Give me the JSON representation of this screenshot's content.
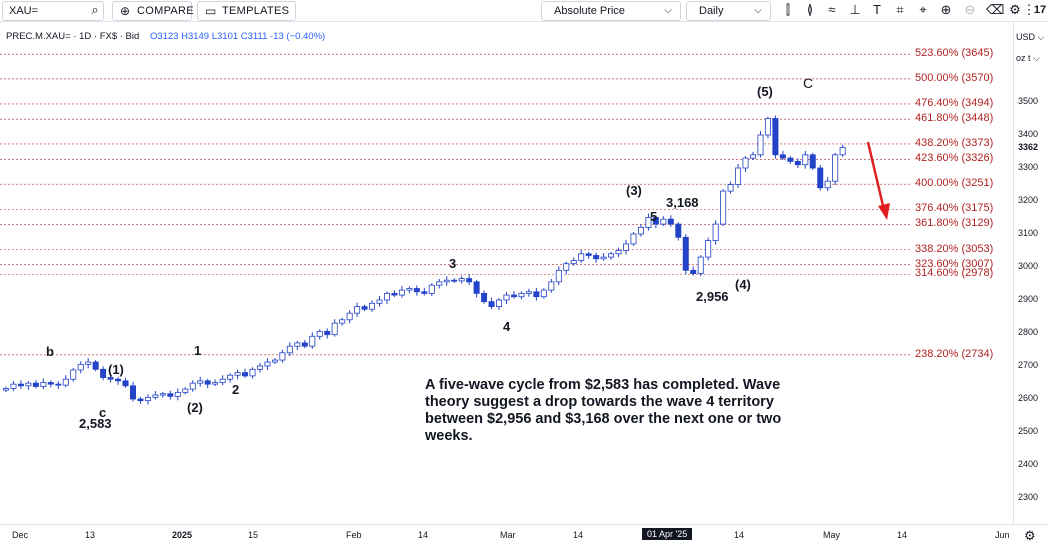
{
  "toolbar": {
    "symbol_value": "XAU=",
    "compare_label": "COMPARE",
    "templates_label": "TEMPLATES",
    "price_mode": "Absolute Price",
    "interval": "Daily",
    "search_icon": "search-icon",
    "tools": [
      "candles-icon",
      "bars-icon",
      "trend-icon",
      "fib-icon",
      "text-icon",
      "shapes-icon",
      "brush-icon",
      "zoom-in-icon",
      "zoom-out-icon",
      "delete-icon",
      "settings-icon",
      "fullscreen-icon",
      "logo-icon"
    ]
  },
  "legend": {
    "symbol": "PREC.M.XAU= · 1D · FX$ · Bid",
    "ohlc": "O3123 H3149 L3101 C3111 -13 (−0.40%)"
  },
  "axis": {
    "currency": "USD",
    "unit": "oz t",
    "current_price": "3362",
    "price_ticks": [
      "3500",
      "3400",
      "3300",
      "3200",
      "3100",
      "3000",
      "2900",
      "2800",
      "2700",
      "2600",
      "2500",
      "2400",
      "2300"
    ],
    "time_ticks": [
      "Dec",
      "13",
      "2025",
      "15",
      "Feb",
      "14",
      "Mar",
      "14",
      "01 Apr '25",
      "14",
      "May",
      "14",
      "Jun"
    ],
    "highlighted_time": "01 Apr '25"
  },
  "fib_levels": [
    {
      "label": "523.60% (3645)",
      "value": 3645
    },
    {
      "label": "500.00% (3570)",
      "value": 3570
    },
    {
      "label": "476.40% (3494)",
      "value": 3494
    },
    {
      "label": "461.80% (3448)",
      "value": 3448
    },
    {
      "label": "438.20% (3373)",
      "value": 3373
    },
    {
      "label": "423.60% (3326)",
      "value": 3326
    },
    {
      "label": "400.00% (3251)",
      "value": 3251
    },
    {
      "label": "376.40% (3175)",
      "value": 3175
    },
    {
      "label": "361.80% (3129)",
      "value": 3129
    },
    {
      "label": "338.20% (3053)",
      "value": 3053
    },
    {
      "label": "323.60% (3007)",
      "value": 3007
    },
    {
      "label": "314.60% (2978)",
      "value": 2978
    },
    {
      "label": "238.20% (2734)",
      "value": 2734
    }
  ],
  "waves": {
    "b": "b",
    "c_lower": "c",
    "w1_paren": "(1)",
    "low_2583": "2,583",
    "w1": "1",
    "w2_paren": "(2)",
    "w2": "2",
    "w3": "3",
    "w4": "4",
    "w3_paren": "(3)",
    "w5": "5",
    "high_3168": "3,168",
    "low_2956": "2,956",
    "w4_paren": "(4)",
    "w5_paren": "(5)",
    "C": "C"
  },
  "annotation": "A five-wave cycle from $2,583 has completed. Wave theory suggest a drop towards the wave 4 territory between $2,956 and $3,168 over the next one or two weeks.",
  "colors": {
    "up": "#2962ff",
    "down": "#2343c8",
    "fib": "#b22222",
    "arrow": "#e02020"
  },
  "chart_data": {
    "type": "candlestick",
    "title": "",
    "series": [
      {
        "name": "",
        "ohlc_close": [
          2632,
          2645,
          2640,
          2648,
          2638,
          2650,
          2645,
          2642,
          2660,
          2688,
          2705,
          2712,
          2690,
          2665,
          2660,
          2655,
          2640,
          2600,
          2595,
          2605,
          2612,
          2616,
          2608,
          2620,
          2630,
          2648,
          2655,
          2645,
          2650,
          2660,
          2672,
          2680,
          2670,
          2690,
          2700,
          2712,
          2718,
          2740,
          2760,
          2770,
          2760,
          2790,
          2805,
          2795,
          2830,
          2840,
          2860,
          2880,
          2872,
          2890,
          2900,
          2920,
          2915,
          2930,
          2935,
          2925,
          2920,
          2945,
          2955,
          2960,
          2958,
          2965,
          2955,
          2920,
          2895,
          2880,
          2900,
          2915,
          2910,
          2920,
          2925,
          2910,
          2930,
          2955,
          2990,
          3010,
          3020,
          3040,
          3035,
          3025,
          3030,
          3040,
          3050,
          3070,
          3100,
          3120,
          3150,
          3130,
          3145,
          3130,
          3090,
          2990,
          2980,
          3030,
          3080,
          3130,
          3230,
          3250,
          3300,
          3330,
          3340,
          3400,
          3450,
          3340,
          3330,
          3320,
          3310,
          3340,
          3300,
          3240,
          3260,
          3340,
          3362
        ]
      }
    ],
    "ylim": [
      2230,
      3720
    ],
    "y_ticks": [
      2300,
      2400,
      2500,
      2600,
      2700,
      2800,
      2900,
      3000,
      3100,
      3200,
      3300,
      3400,
      3500
    ],
    "x_ticks": [
      "Dec",
      "13",
      "2025",
      "15",
      "Feb",
      "14",
      "Mar",
      "14",
      "01 Apr '25",
      "14",
      "May",
      "14",
      "Jun"
    ],
    "annotations": [
      "A five-wave cycle from $2,583 has completed. Wave theory suggest a drop towards the wave 4 territory between $2,956 and $3,168 over the next one or two weeks."
    ]
  }
}
